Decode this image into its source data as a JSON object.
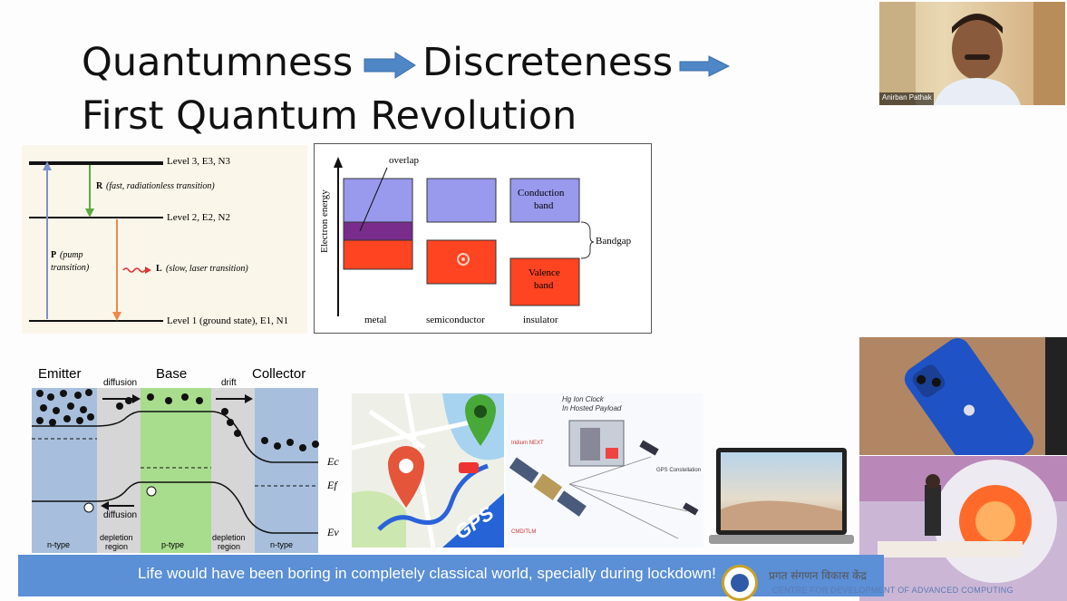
{
  "slide": {
    "title_line1_a": "Quantumness",
    "title_line1_b": "Discreteness",
    "title_line2": "First Quantum Revolution",
    "banner_text": "Life would have been boring in completely classical world, specially during lockdown!"
  },
  "webcam": {
    "participant_name": "Anirban Pathak"
  },
  "laser_diagram": {
    "level3": "Level 3, E3, N3",
    "level2": "Level 2, E2, N2",
    "level1": "Level 1 (ground state), E1, N1",
    "r_label": "R",
    "r_desc": "(fast, radiationless transition)",
    "p_label": "P",
    "p_desc1": "(pump",
    "p_desc2": "transition)",
    "l_label": "L",
    "l_desc": "(slow, laser transition)"
  },
  "band_diagram": {
    "y_axis": "Electron energy",
    "overlap": "overlap",
    "conduction1": "Conduction",
    "conduction2": "band",
    "valence1": "Valence",
    "valence2": "band",
    "bandgap": "Bandgap",
    "cat_metal": "metal",
    "cat_semi": "semiconductor",
    "cat_insulator": "insulator"
  },
  "transistor": {
    "emitter": "Emitter",
    "base": "Base",
    "collector": "Collector",
    "diffusion_top": "diffusion",
    "drift": "drift",
    "diffusion_bottom": "diffusion",
    "ntype_left": "n-type",
    "depletion_left1": "depletion",
    "depletion_left2": "region",
    "ptype": "p-type",
    "depletion_right1": "depletion",
    "depletion_right2": "region",
    "ntype_right": "n-type",
    "ec": "Ec",
    "ef": "Ef",
    "ev": "Ev"
  },
  "gps": {
    "label": "GPS"
  },
  "clock": {
    "title1": "Hg Ion Clock",
    "title2": "In Hosted Payload",
    "iridium": "Iridium NEXT",
    "constellation": "GPS Constellation",
    "ground": "CMD/TLM"
  },
  "logo": {
    "line1": "प्रगत संगणन विकास केंद्र",
    "line2": "CENTRE FOR DEVELOPMENT OF ADVANCED COMPUTING"
  },
  "colors": {
    "banner": "#5b8fd6",
    "arrow": "#4f86c6",
    "conduction": "#9999ee",
    "valence": "#ff4422",
    "overlap": "#7a2c8c",
    "base_region": "#a9dd8e",
    "n_region": "#a7bfdc",
    "depletion": "#d6d6d6"
  }
}
